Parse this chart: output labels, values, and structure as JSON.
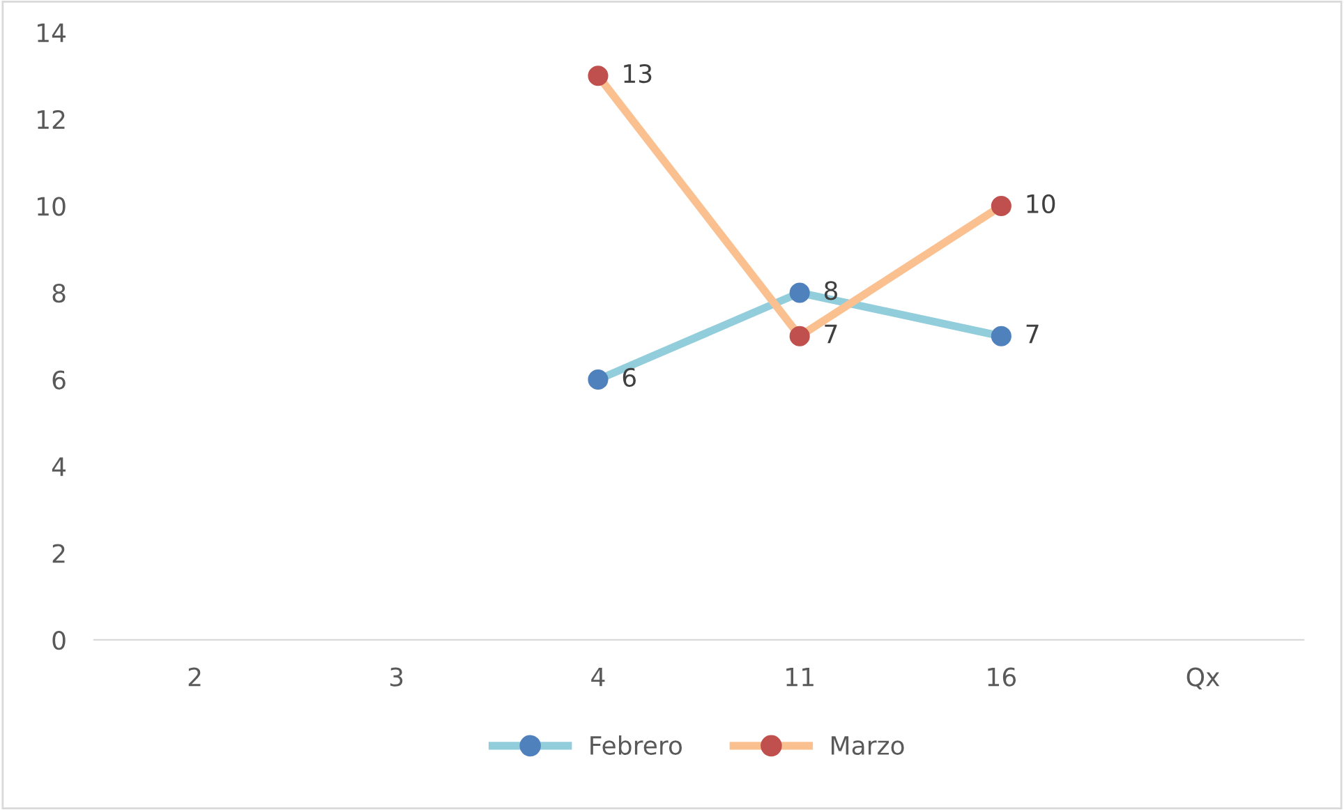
{
  "chart_data": {
    "type": "line",
    "categories": [
      "2",
      "3",
      "4",
      "11",
      "16",
      "Qx"
    ],
    "series": [
      {
        "name": "Febrero",
        "color": "#92cddc",
        "colors": [
          null,
          null,
          "#4f81bd",
          "#4f81bd",
          "#4f81bd",
          null
        ],
        "values": [
          null,
          null,
          6,
          8,
          7,
          null
        ]
      },
      {
        "name": "Marzo",
        "color": "#fac090",
        "colors": [
          null,
          null,
          "#c0504d",
          "#c0504d",
          "#c0504d",
          null
        ],
        "values": [
          null,
          null,
          13,
          7,
          10,
          null
        ]
      }
    ],
    "ylim": [
      0,
      14
    ],
    "yticks": [
      0,
      2,
      4,
      6,
      8,
      10,
      12,
      14
    ],
    "grid": false,
    "legend": "bottom",
    "marker": "circle",
    "line_style": "solid",
    "data_labels": true
  }
}
